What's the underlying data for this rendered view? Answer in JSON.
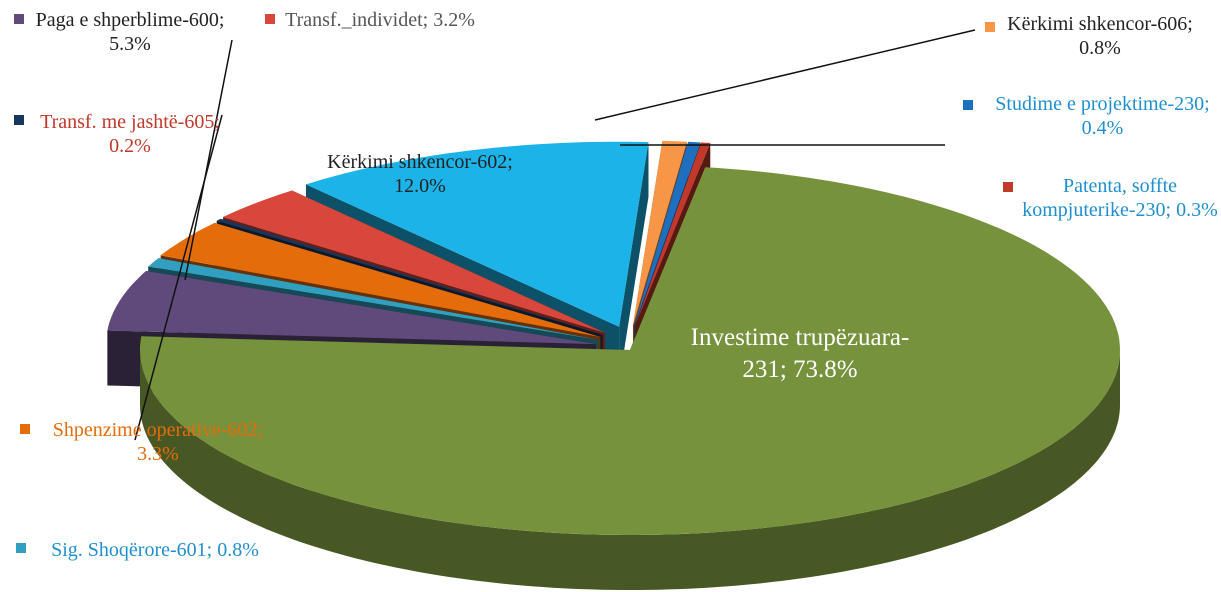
{
  "chart_data": {
    "type": "pie3d",
    "categories": [
      "Kërkimi shkencor-606; 0.8%",
      "Studime e projektime-230; 0.4%",
      "Patenta, soffte kompjuterike-230; 0.3%",
      "Investime trupëzuara-231; 73.8%",
      "Paga e shperblime-600; 5.3%",
      "Sig. Shoqërore-601; 0.8%",
      "Shpenzime operative-602; 3.3%",
      "Transf. me jashtë-605; 0.2%",
      "Transf._individet; 3.2%",
      "Kërkimi shkencor-602; 12.0%"
    ],
    "values": [
      0.8,
      0.4,
      0.3,
      73.8,
      5.3,
      0.8,
      3.3,
      0.2,
      3.2,
      12.0
    ],
    "colors": [
      "#f79646",
      "#1f6fc0",
      "#c0392b",
      "#76923c",
      "#604a7b",
      "#31a0c0",
      "#e46c0a",
      "#17375e",
      "#d9463b",
      "#1cb4e8"
    ]
  }
}
